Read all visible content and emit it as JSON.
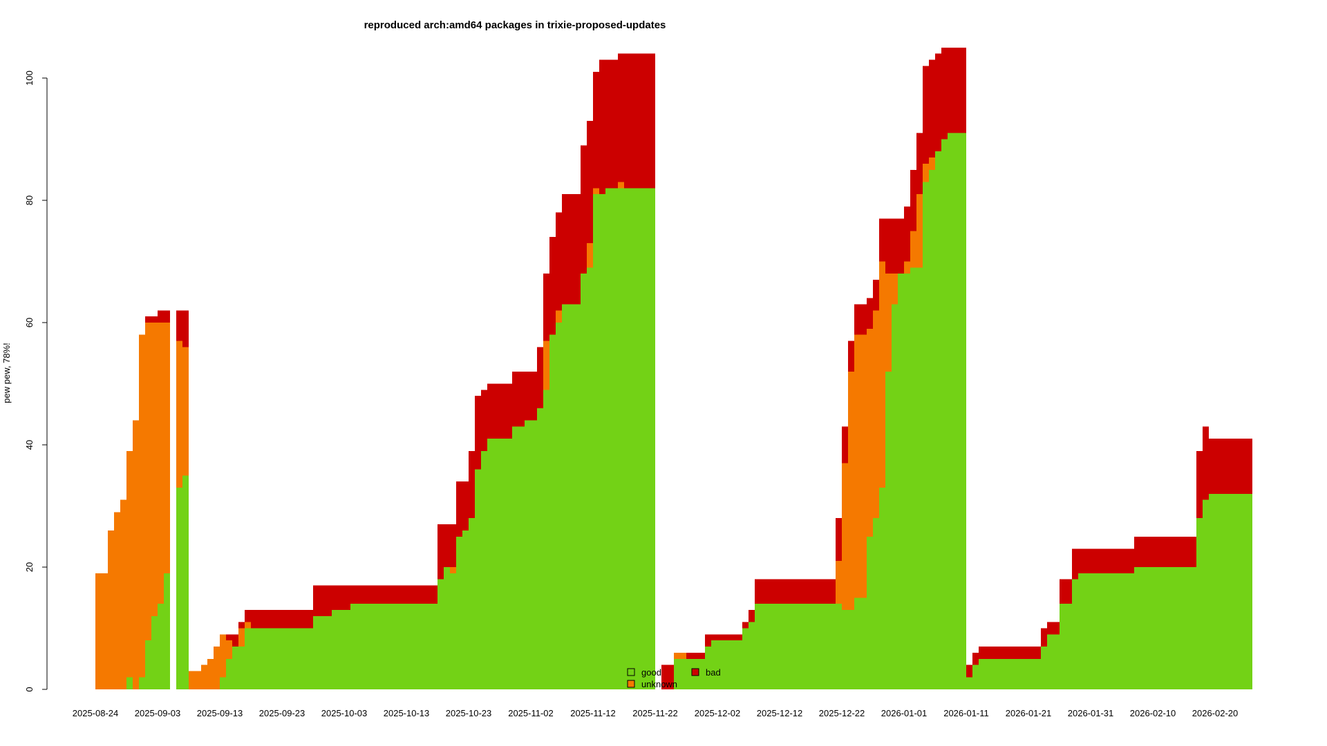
{
  "chart_data": {
    "type": "area",
    "stacked": true,
    "title": "reproduced arch:amd64 packages in trixie-proposed-updates",
    "xlabel": "",
    "ylabel": "pew pew, 78%!",
    "ylim": [
      0,
      100
    ],
    "y_ticks": [
      0,
      20,
      40,
      60,
      80,
      100
    ],
    "x_ticks": [
      "2025-08-24",
      "2025-09-03",
      "2025-09-13",
      "2025-09-23",
      "2025-10-03",
      "2025-10-13",
      "2025-10-23",
      "2025-11-02",
      "2025-11-12",
      "2025-11-22",
      "2025-12-02",
      "2025-12-12",
      "2025-12-22",
      "2026-01-01",
      "2026-01-11",
      "2026-01-21",
      "2026-01-31",
      "2026-02-10",
      "2026-02-20"
    ],
    "colors": {
      "good": "#73d216",
      "unknown": "#f57900",
      "bad": "#cc0000"
    },
    "legend": {
      "placement": "bottom-center",
      "entries": [
        {
          "key": "good",
          "label": "good"
        },
        {
          "key": "unknown",
          "label": "unknown"
        },
        {
          "key": "bad",
          "label": "bad"
        }
      ]
    },
    "start_date": "2025-08-24",
    "x_unit": "days since 2025-08-24",
    "series_order": [
      "good",
      "unknown",
      "bad"
    ],
    "points": [
      {
        "x": 0,
        "good": 0,
        "unknown": 19,
        "bad": 0
      },
      {
        "x": 2,
        "good": 0,
        "unknown": 26,
        "bad": 0
      },
      {
        "x": 3,
        "good": 0,
        "unknown": 29,
        "bad": 0
      },
      {
        "x": 4,
        "good": 0,
        "unknown": 31,
        "bad": 0
      },
      {
        "x": 5,
        "good": 2,
        "unknown": 37,
        "bad": 0
      },
      {
        "x": 6,
        "good": 0,
        "unknown": 44,
        "bad": 0
      },
      {
        "x": 7,
        "good": 2,
        "unknown": 56,
        "bad": 0
      },
      {
        "x": 8,
        "good": 8,
        "unknown": 52,
        "bad": 1
      },
      {
        "x": 9,
        "good": 12,
        "unknown": 48,
        "bad": 1
      },
      {
        "x": 10,
        "good": 14,
        "unknown": 46,
        "bad": 2
      },
      {
        "x": 11,
        "good": 19,
        "unknown": 41,
        "bad": 2
      },
      {
        "x": 12,
        "good": 0,
        "unknown": 0,
        "bad": 0
      },
      {
        "x": 13,
        "good": 33,
        "unknown": 24,
        "bad": 5
      },
      {
        "x": 14,
        "good": 35,
        "unknown": 21,
        "bad": 6
      },
      {
        "x": 15,
        "good": 0,
        "unknown": 3,
        "bad": 0
      },
      {
        "x": 17,
        "good": 0,
        "unknown": 4,
        "bad": 0
      },
      {
        "x": 18,
        "good": 0,
        "unknown": 5,
        "bad": 0
      },
      {
        "x": 19,
        "good": 0,
        "unknown": 7,
        "bad": 0
      },
      {
        "x": 20,
        "good": 2,
        "unknown": 7,
        "bad": 0
      },
      {
        "x": 21,
        "good": 5,
        "unknown": 3,
        "bad": 1
      },
      {
        "x": 22,
        "good": 7,
        "unknown": 0,
        "bad": 2
      },
      {
        "x": 23,
        "good": 7,
        "unknown": 3,
        "bad": 1
      },
      {
        "x": 24,
        "good": 10,
        "unknown": 1,
        "bad": 2
      },
      {
        "x": 25,
        "good": 10,
        "unknown": 0,
        "bad": 3
      },
      {
        "x": 35,
        "good": 12,
        "unknown": 0,
        "bad": 5
      },
      {
        "x": 38,
        "good": 13,
        "unknown": 0,
        "bad": 4
      },
      {
        "x": 41,
        "good": 14,
        "unknown": 0,
        "bad": 3
      },
      {
        "x": 55,
        "good": 18,
        "unknown": 0,
        "bad": 9
      },
      {
        "x": 56,
        "good": 20,
        "unknown": 0,
        "bad": 7
      },
      {
        "x": 57,
        "good": 19,
        "unknown": 1,
        "bad": 7
      },
      {
        "x": 58,
        "good": 25,
        "unknown": 0,
        "bad": 9
      },
      {
        "x": 59,
        "good": 26,
        "unknown": 0,
        "bad": 8
      },
      {
        "x": 60,
        "good": 28,
        "unknown": 0,
        "bad": 11
      },
      {
        "x": 61,
        "good": 36,
        "unknown": 0,
        "bad": 12
      },
      {
        "x": 62,
        "good": 39,
        "unknown": 0,
        "bad": 10
      },
      {
        "x": 63,
        "good": 41,
        "unknown": 0,
        "bad": 9
      },
      {
        "x": 67,
        "good": 43,
        "unknown": 0,
        "bad": 9
      },
      {
        "x": 69,
        "good": 44,
        "unknown": 0,
        "bad": 8
      },
      {
        "x": 71,
        "good": 46,
        "unknown": 0,
        "bad": 10
      },
      {
        "x": 72,
        "good": 49,
        "unknown": 8,
        "bad": 11
      },
      {
        "x": 73,
        "good": 58,
        "unknown": 0,
        "bad": 16
      },
      {
        "x": 74,
        "good": 60,
        "unknown": 2,
        "bad": 16
      },
      {
        "x": 75,
        "good": 63,
        "unknown": 0,
        "bad": 18
      },
      {
        "x": 78,
        "good": 68,
        "unknown": 0,
        "bad": 21
      },
      {
        "x": 79,
        "good": 69,
        "unknown": 4,
        "bad": 20
      },
      {
        "x": 80,
        "good": 81,
        "unknown": 1,
        "bad": 19
      },
      {
        "x": 81,
        "good": 81,
        "unknown": 0,
        "bad": 22
      },
      {
        "x": 82,
        "good": 82,
        "unknown": 0,
        "bad": 21
      },
      {
        "x": 84,
        "good": 82,
        "unknown": 1,
        "bad": 21
      },
      {
        "x": 85,
        "good": 82,
        "unknown": 0,
        "bad": 22
      },
      {
        "x": 90,
        "good": 0,
        "unknown": 0,
        "bad": 0
      },
      {
        "x": 91,
        "good": 0,
        "unknown": 0,
        "bad": 4
      },
      {
        "x": 93,
        "good": 5,
        "unknown": 1,
        "bad": 0
      },
      {
        "x": 95,
        "good": 5,
        "unknown": 0,
        "bad": 1
      },
      {
        "x": 98,
        "good": 7,
        "unknown": 0,
        "bad": 2
      },
      {
        "x": 99,
        "good": 8,
        "unknown": 0,
        "bad": 1
      },
      {
        "x": 104,
        "good": 10,
        "unknown": 0,
        "bad": 1
      },
      {
        "x": 105,
        "good": 11,
        "unknown": 0,
        "bad": 2
      },
      {
        "x": 106,
        "good": 14,
        "unknown": 0,
        "bad": 4
      },
      {
        "x": 119,
        "good": 14,
        "unknown": 7,
        "bad": 7
      },
      {
        "x": 120,
        "good": 13,
        "unknown": 24,
        "bad": 6
      },
      {
        "x": 121,
        "good": 13,
        "unknown": 39,
        "bad": 5
      },
      {
        "x": 122,
        "good": 15,
        "unknown": 43,
        "bad": 5
      },
      {
        "x": 124,
        "good": 25,
        "unknown": 34,
        "bad": 5
      },
      {
        "x": 125,
        "good": 28,
        "unknown": 34,
        "bad": 5
      },
      {
        "x": 126,
        "good": 33,
        "unknown": 37,
        "bad": 7
      },
      {
        "x": 127,
        "good": 52,
        "unknown": 16,
        "bad": 9
      },
      {
        "x": 128,
        "good": 63,
        "unknown": 5,
        "bad": 9
      },
      {
        "x": 129,
        "good": 68,
        "unknown": 0,
        "bad": 9
      },
      {
        "x": 130,
        "good": 68,
        "unknown": 2,
        "bad": 9
      },
      {
        "x": 131,
        "good": 69,
        "unknown": 6,
        "bad": 10
      },
      {
        "x": 132,
        "good": 69,
        "unknown": 12,
        "bad": 10
      },
      {
        "x": 133,
        "good": 83,
        "unknown": 3,
        "bad": 16
      },
      {
        "x": 134,
        "good": 85,
        "unknown": 2,
        "bad": 16
      },
      {
        "x": 135,
        "good": 88,
        "unknown": 0,
        "bad": 16
      },
      {
        "x": 136,
        "good": 90,
        "unknown": 0,
        "bad": 15
      },
      {
        "x": 137,
        "good": 91,
        "unknown": 0,
        "bad": 14
      },
      {
        "x": 140,
        "good": 2,
        "unknown": 0,
        "bad": 2
      },
      {
        "x": 141,
        "good": 4,
        "unknown": 0,
        "bad": 2
      },
      {
        "x": 142,
        "good": 5,
        "unknown": 0,
        "bad": 2
      },
      {
        "x": 152,
        "good": 7,
        "unknown": 0,
        "bad": 3
      },
      {
        "x": 153,
        "good": 9,
        "unknown": 0,
        "bad": 2
      },
      {
        "x": 155,
        "good": 14,
        "unknown": 0,
        "bad": 4
      },
      {
        "x": 157,
        "good": 18,
        "unknown": 0,
        "bad": 5
      },
      {
        "x": 158,
        "good": 19,
        "unknown": 0,
        "bad": 4
      },
      {
        "x": 167,
        "good": 20,
        "unknown": 0,
        "bad": 5
      },
      {
        "x": 177,
        "good": 28,
        "unknown": 0,
        "bad": 11
      },
      {
        "x": 178,
        "good": 31,
        "unknown": 0,
        "bad": 12
      },
      {
        "x": 179,
        "good": 32,
        "unknown": 0,
        "bad": 9
      },
      {
        "x": 185,
        "good": 32,
        "unknown": 0,
        "bad": 9
      }
    ]
  }
}
